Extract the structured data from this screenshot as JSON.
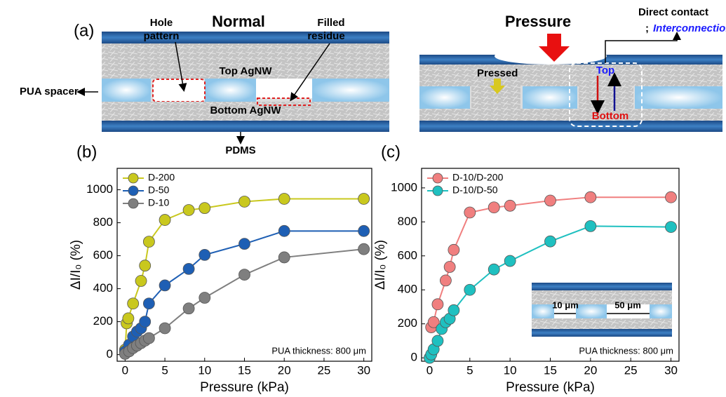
{
  "panel_a": {
    "label": "(a)",
    "normal": "Normal",
    "hole_pattern": [
      "Hole",
      "pattern"
    ],
    "filled_residue": [
      "Filled",
      "residue"
    ],
    "top_agnw": "Top AgNW",
    "pua_spacer": "PUA spacer",
    "bottom_agnw": "Bottom AgNW",
    "pdms": "PDMS",
    "pressure": "Pressure",
    "direct_contact": "Direct contact",
    "separator": ";",
    "interconnection": "Interconnection",
    "pressed": "Pressed",
    "top": "Top",
    "bottom": "Bottom"
  },
  "chart_data": [
    {
      "type": "line",
      "label": "(b)",
      "xlabel": "Pressure (kPa)",
      "ylabel": "ΔI/I₀ (%)",
      "annotation": "PUA thickness: 800 μm",
      "legend": "upper left",
      "xlim": [
        -1,
        31
      ],
      "xticks": [
        0,
        5,
        10,
        15,
        20,
        25,
        30
      ],
      "ylim": [
        -40,
        1130
      ],
      "yticks": [
        0,
        200,
        400,
        600,
        800,
        1000
      ],
      "series": [
        {
          "name": "D-200",
          "color": "#c9c81e",
          "x": [
            0,
            0.2,
            0.4,
            1,
            2,
            2.5,
            3,
            5,
            8,
            10,
            15,
            20,
            30
          ],
          "values": [
            30,
            190,
            220,
            310,
            447,
            540,
            685,
            817,
            877,
            889,
            928,
            945,
            945
          ]
        },
        {
          "name": "D-50",
          "color": "#1e5fb4",
          "x": [
            0,
            0.5,
            1,
            1.5,
            2,
            2.5,
            3,
            5,
            8,
            10,
            15,
            20,
            30
          ],
          "values": [
            20,
            60,
            110,
            140,
            160,
            200,
            310,
            420,
            520,
            605,
            672,
            750,
            750
          ]
        },
        {
          "name": "D-10",
          "color": "#7f7f7f",
          "x": [
            0,
            0.5,
            1,
            1.5,
            2,
            2.5,
            3,
            5,
            8,
            10,
            15,
            20,
            30
          ],
          "values": [
            5,
            20,
            40,
            55,
            70,
            85,
            100,
            160,
            280,
            345,
            485,
            590,
            640
          ]
        }
      ]
    },
    {
      "type": "line",
      "label": "(c)",
      "xlabel": "Pressure (kPa)",
      "ylabel": "ΔI/I₀ (%)",
      "annotation": "PUA thickness: 800 μm",
      "legend": "upper left",
      "inset": [
        "10 μm",
        "50 μm"
      ],
      "xlim": [
        -1,
        31
      ],
      "xticks": [
        0,
        5,
        10,
        15,
        20,
        25,
        30
      ],
      "ylim": [
        -20,
        1115
      ],
      "yticks": [
        0,
        200,
        400,
        600,
        800,
        1000
      ],
      "series": [
        {
          "name": "D-10/D-200",
          "color": "#f07f7f",
          "x": [
            0.2,
            0.5,
            1,
            2,
            2.5,
            3,
            5,
            8,
            10,
            15,
            20,
            30
          ],
          "values": [
            180,
            210,
            315,
            455,
            535,
            635,
            855,
            885,
            895,
            925,
            945,
            945
          ]
        },
        {
          "name": "D-10/D-50",
          "color": "#1fc0c0",
          "x": [
            0,
            0.2,
            0.5,
            1,
            1.5,
            2,
            2.5,
            3,
            5,
            8,
            10,
            15,
            20,
            30
          ],
          "values": [
            0,
            20,
            50,
            100,
            170,
            210,
            230,
            280,
            400,
            520,
            570,
            685,
            775,
            770
          ]
        }
      ]
    }
  ]
}
